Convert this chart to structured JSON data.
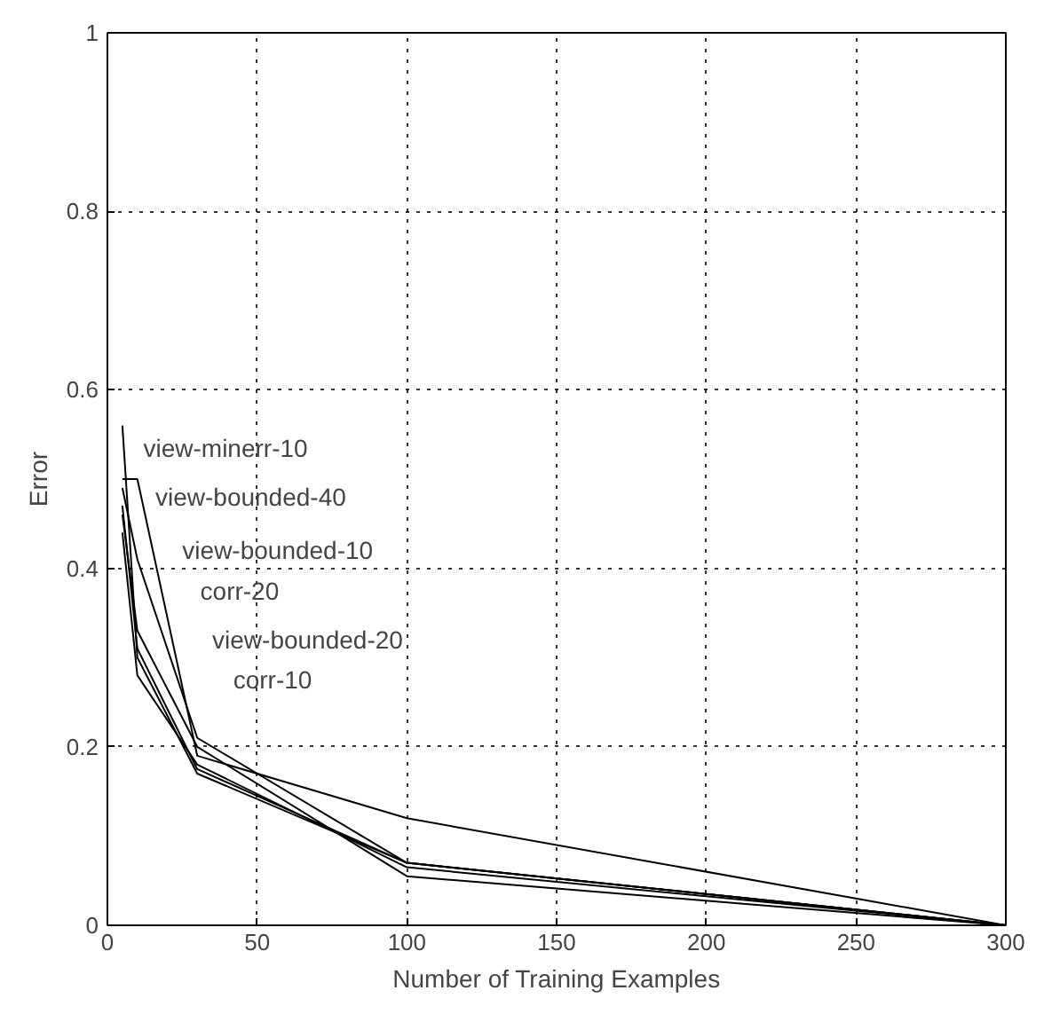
{
  "chart_data": {
    "type": "line",
    "xlabel": "Number of Training Examples",
    "ylabel": "Error",
    "xlim": [
      0,
      300
    ],
    "ylim": [
      0,
      1
    ],
    "xticks": [
      0,
      50,
      100,
      150,
      200,
      250,
      300
    ],
    "yticks": [
      0,
      0.2,
      0.4,
      0.6,
      0.8,
      1
    ],
    "grid": true,
    "line_style": "solid",
    "annotations": [
      "view-minerr-10",
      "view-bounded-40",
      "view-bounded-10",
      "corr-20",
      "view-bounded-20",
      "corr-10"
    ],
    "series": [
      {
        "color": "#000000",
        "x": [
          5,
          10,
          30,
          100,
          300
        ],
        "values": [
          0.56,
          0.3,
          0.17,
          0.07,
          0
        ]
      },
      {
        "color": "#000000",
        "x": [
          5,
          10,
          30,
          100,
          300
        ],
        "values": [
          0.5,
          0.5,
          0.19,
          0.12,
          0
        ]
      },
      {
        "color": "#000000",
        "x": [
          5,
          10,
          30,
          100,
          300
        ],
        "values": [
          0.49,
          0.41,
          0.21,
          0.07,
          0
        ]
      },
      {
        "color": "#000000",
        "x": [
          5,
          10,
          30,
          100,
          300
        ],
        "values": [
          0.46,
          0.33,
          0.2,
          0.055,
          0
        ]
      },
      {
        "color": "#000000",
        "x": [
          5,
          10,
          30,
          100,
          300
        ],
        "values": [
          0.44,
          0.28,
          0.18,
          0.065,
          0
        ]
      },
      {
        "color": "#000000",
        "x": [
          5,
          10,
          30,
          100,
          300
        ],
        "values": [
          0.47,
          0.31,
          0.175,
          0.07,
          0
        ]
      }
    ]
  }
}
